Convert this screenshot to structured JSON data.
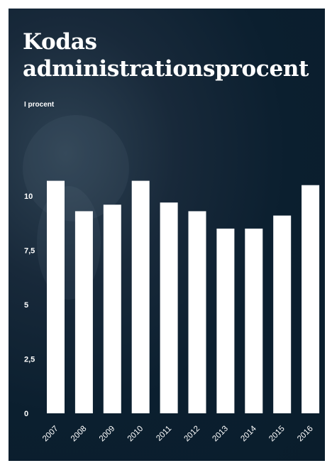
{
  "chart_data": {
    "type": "bar",
    "title": "Kodas administrationsprocent",
    "unit_label": "I procent",
    "categories": [
      "2007",
      "2008",
      "2009",
      "2010",
      "2011",
      "2012",
      "2013",
      "2014",
      "2015",
      "2016"
    ],
    "values": [
      10.7,
      9.3,
      9.6,
      10.7,
      9.7,
      9.3,
      8.5,
      8.5,
      9.1,
      10.5
    ],
    "ylim": [
      0,
      10.7
    ],
    "yticks": [
      0,
      2.5,
      5,
      7.5,
      10
    ],
    "ytick_labels": [
      "0",
      "2,5",
      "5",
      "7,5",
      "10"
    ],
    "grid": false,
    "bar_color": "#ffffff",
    "background_color": "#0b1f2f",
    "text_color": "#ffffff"
  }
}
